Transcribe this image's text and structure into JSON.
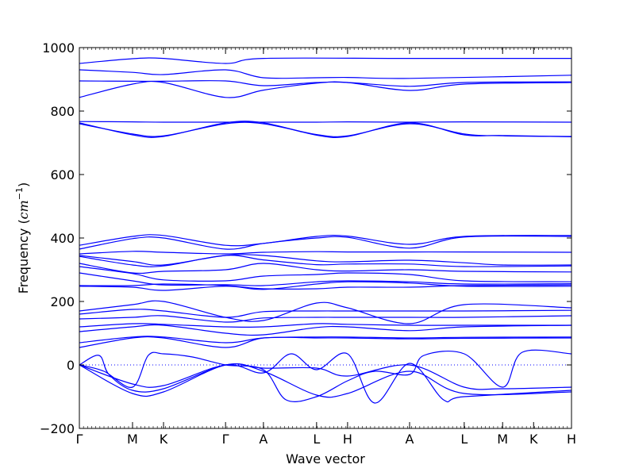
{
  "chart_data": {
    "type": "line",
    "title": "",
    "xlabel": "Wave vector",
    "ylabel": "Frequency (cm⁻¹)",
    "ylabel_base": "Frequency (",
    "ylabel_unit": "cm",
    "ylabel_exp": "−1",
    "ylabel_close": ")",
    "ylim": [
      -200,
      1000
    ],
    "yticks": [
      -200,
      0,
      200,
      400,
      600,
      800,
      1000
    ],
    "grid": false,
    "legend": "none",
    "line_color": "#0000ff",
    "zero_line_color": "#0000ff",
    "high_symmetry_points": [
      {
        "label": "Γ",
        "x": 0.0
      },
      {
        "label": "M",
        "x": 0.108
      },
      {
        "label": "K",
        "x": 0.171
      },
      {
        "label": "Γ",
        "x": 0.297
      },
      {
        "label": "A",
        "x": 0.374
      },
      {
        "label": "L",
        "x": 0.482
      },
      {
        "label": "H",
        "x": 0.545
      },
      {
        "label": "A",
        "x": 0.671
      },
      {
        "label": "L",
        "x": 0.782
      },
      {
        "label": "M",
        "x": 0.86
      },
      {
        "label": "K",
        "x": 0.923
      },
      {
        "label": "H",
        "x": 1.0
      }
    ],
    "series": [
      {
        "values": [
          [
            0.0,
            950
          ],
          [
            0.108,
            965
          ],
          [
            0.171,
            966
          ],
          [
            0.297,
            950
          ],
          [
            0.374,
            966
          ],
          [
            0.671,
            966
          ],
          [
            1.0,
            966
          ]
        ]
      },
      {
        "values": [
          [
            0.0,
            930
          ],
          [
            0.108,
            922
          ],
          [
            0.171,
            915
          ],
          [
            0.297,
            930
          ],
          [
            0.374,
            905
          ],
          [
            0.482,
            905
          ],
          [
            0.545,
            906
          ],
          [
            0.671,
            903
          ],
          [
            1.0,
            913
          ]
        ]
      },
      {
        "values": [
          [
            0.0,
            895
          ],
          [
            0.108,
            894
          ],
          [
            0.171,
            894
          ],
          [
            0.297,
            895
          ],
          [
            0.374,
            880
          ],
          [
            0.482,
            890
          ],
          [
            0.545,
            890
          ],
          [
            0.671,
            878
          ],
          [
            0.782,
            890
          ],
          [
            1.0,
            892
          ]
        ]
      },
      {
        "values": [
          [
            0.0,
            843
          ],
          [
            0.108,
            885
          ],
          [
            0.171,
            890
          ],
          [
            0.297,
            843
          ],
          [
            0.374,
            866
          ],
          [
            0.482,
            888
          ],
          [
            0.545,
            890
          ],
          [
            0.671,
            865
          ],
          [
            0.782,
            885
          ],
          [
            1.0,
            890
          ]
        ]
      },
      {
        "values": [
          [
            0.0,
            767
          ],
          [
            0.108,
            766
          ],
          [
            0.171,
            765
          ],
          [
            0.297,
            765
          ],
          [
            0.374,
            765
          ],
          [
            0.482,
            765
          ],
          [
            0.545,
            766
          ],
          [
            0.671,
            765
          ],
          [
            0.782,
            766
          ],
          [
            1.0,
            765
          ]
        ]
      },
      {
        "values": [
          [
            0.0,
            763
          ],
          [
            0.108,
            725
          ],
          [
            0.171,
            720
          ],
          [
            0.297,
            763
          ],
          [
            0.374,
            763
          ],
          [
            0.482,
            724
          ],
          [
            0.545,
            720
          ],
          [
            0.671,
            763
          ],
          [
            0.782,
            725
          ],
          [
            0.86,
            723
          ],
          [
            1.0,
            719
          ]
        ]
      },
      {
        "values": [
          [
            0.0,
            760
          ],
          [
            0.108,
            728
          ],
          [
            0.171,
            722
          ],
          [
            0.297,
            760
          ],
          [
            0.374,
            760
          ],
          [
            0.482,
            726
          ],
          [
            0.545,
            722
          ],
          [
            0.671,
            760
          ],
          [
            0.782,
            728
          ],
          [
            0.86,
            722
          ],
          [
            1.0,
            720
          ]
        ]
      },
      {
        "values": [
          [
            0.0,
            377
          ],
          [
            0.108,
            405
          ],
          [
            0.171,
            408
          ],
          [
            0.297,
            377
          ],
          [
            0.374,
            383
          ],
          [
            0.482,
            405
          ],
          [
            0.545,
            406
          ],
          [
            0.671,
            380
          ],
          [
            0.782,
            405
          ],
          [
            1.0,
            408
          ]
        ]
      },
      {
        "values": [
          [
            0.0,
            365
          ],
          [
            0.108,
            398
          ],
          [
            0.171,
            400
          ],
          [
            0.297,
            365
          ],
          [
            0.374,
            383
          ],
          [
            0.482,
            400
          ],
          [
            0.545,
            402
          ],
          [
            0.671,
            368
          ],
          [
            0.782,
            403
          ],
          [
            1.0,
            405
          ]
        ]
      },
      {
        "values": [
          [
            0.0,
            350
          ],
          [
            0.108,
            358
          ],
          [
            0.171,
            355
          ],
          [
            0.297,
            350
          ],
          [
            0.374,
            355
          ],
          [
            0.482,
            357
          ],
          [
            0.545,
            356
          ],
          [
            0.671,
            356
          ],
          [
            0.782,
            356
          ],
          [
            1.0,
            355
          ]
        ]
      },
      {
        "values": [
          [
            0.0,
            345
          ],
          [
            0.108,
            326
          ],
          [
            0.171,
            315
          ],
          [
            0.297,
            345
          ],
          [
            0.374,
            345
          ],
          [
            0.482,
            328
          ],
          [
            0.545,
            325
          ],
          [
            0.671,
            330
          ],
          [
            0.782,
            322
          ],
          [
            0.86,
            315
          ],
          [
            1.0,
            315
          ]
        ]
      },
      {
        "values": [
          [
            0.0,
            342
          ],
          [
            0.108,
            315
          ],
          [
            0.171,
            312
          ],
          [
            0.297,
            345
          ],
          [
            0.374,
            331
          ],
          [
            0.482,
            316
          ],
          [
            0.545,
            318
          ],
          [
            0.671,
            318
          ],
          [
            0.782,
            310
          ],
          [
            1.0,
            312
          ]
        ]
      },
      {
        "values": [
          [
            0.0,
            320
          ],
          [
            0.108,
            290
          ],
          [
            0.171,
            295
          ],
          [
            0.297,
            300
          ],
          [
            0.374,
            320
          ],
          [
            0.482,
            300
          ],
          [
            0.545,
            296
          ],
          [
            0.671,
            300
          ],
          [
            0.782,
            295
          ],
          [
            1.0,
            293
          ]
        ]
      },
      {
        "values": [
          [
            0.0,
            310
          ],
          [
            0.108,
            288
          ],
          [
            0.171,
            268
          ],
          [
            0.297,
            265
          ],
          [
            0.374,
            280
          ],
          [
            0.482,
            285
          ],
          [
            0.545,
            290
          ],
          [
            0.671,
            285
          ],
          [
            0.782,
            265
          ],
          [
            1.0,
            262
          ]
        ]
      },
      {
        "values": [
          [
            0.0,
            290
          ],
          [
            0.108,
            265
          ],
          [
            0.171,
            252
          ],
          [
            0.297,
            253
          ],
          [
            0.374,
            250
          ],
          [
            0.482,
            262
          ],
          [
            0.545,
            265
          ],
          [
            0.671,
            262
          ],
          [
            0.782,
            255
          ],
          [
            1.0,
            256
          ]
        ]
      },
      {
        "values": [
          [
            0.0,
            250
          ],
          [
            0.108,
            250
          ],
          [
            0.171,
            255
          ],
          [
            0.297,
            250
          ],
          [
            0.374,
            240
          ],
          [
            0.482,
            240
          ],
          [
            0.545,
            245
          ],
          [
            0.671,
            245
          ],
          [
            0.782,
            250
          ],
          [
            1.0,
            252
          ]
        ]
      },
      {
        "values": [
          [
            0.0,
            248
          ],
          [
            0.108,
            245
          ],
          [
            0.171,
            235
          ],
          [
            0.297,
            248
          ],
          [
            0.374,
            238
          ],
          [
            0.482,
            255
          ],
          [
            0.545,
            262
          ],
          [
            0.671,
            258
          ],
          [
            0.782,
            248
          ],
          [
            1.0,
            248
          ]
        ]
      },
      {
        "values": [
          [
            0.0,
            170
          ],
          [
            0.108,
            190
          ],
          [
            0.171,
            200
          ],
          [
            0.297,
            150
          ],
          [
            0.374,
            140
          ],
          [
            0.482,
            195
          ],
          [
            0.545,
            180
          ],
          [
            0.671,
            130
          ],
          [
            0.782,
            190
          ],
          [
            1.0,
            180
          ]
        ]
      },
      {
        "values": [
          [
            0.0,
            160
          ],
          [
            0.108,
            175
          ],
          [
            0.171,
            170
          ],
          [
            0.297,
            150
          ],
          [
            0.374,
            168
          ],
          [
            0.482,
            170
          ],
          [
            0.545,
            170
          ],
          [
            0.671,
            170
          ],
          [
            0.782,
            170
          ],
          [
            1.0,
            172
          ]
        ]
      },
      {
        "values": [
          [
            0.0,
            145
          ],
          [
            0.108,
            150
          ],
          [
            0.171,
            155
          ],
          [
            0.297,
            135
          ],
          [
            0.374,
            148
          ],
          [
            0.482,
            150
          ],
          [
            0.545,
            150
          ],
          [
            0.671,
            150
          ],
          [
            0.782,
            150
          ],
          [
            1.0,
            155
          ]
        ]
      },
      {
        "values": [
          [
            0.0,
            120
          ],
          [
            0.108,
            130
          ],
          [
            0.171,
            128
          ],
          [
            0.297,
            120
          ],
          [
            0.374,
            120
          ],
          [
            0.482,
            130
          ],
          [
            0.545,
            128
          ],
          [
            0.671,
            125
          ],
          [
            0.782,
            125
          ],
          [
            1.0,
            125
          ]
        ]
      },
      {
        "values": [
          [
            0.0,
            105
          ],
          [
            0.108,
            120
          ],
          [
            0.171,
            125
          ],
          [
            0.297,
            100
          ],
          [
            0.374,
            95
          ],
          [
            0.482,
            118
          ],
          [
            0.545,
            120
          ],
          [
            0.671,
            108
          ],
          [
            0.782,
            120
          ],
          [
            1.0,
            125
          ]
        ]
      },
      {
        "values": [
          [
            0.0,
            70
          ],
          [
            0.108,
            88
          ],
          [
            0.171,
            88
          ],
          [
            0.297,
            70
          ],
          [
            0.374,
            85
          ],
          [
            0.482,
            88
          ],
          [
            0.545,
            88
          ],
          [
            0.671,
            85
          ],
          [
            0.782,
            87
          ],
          [
            1.0,
            88
          ]
        ]
      },
      {
        "values": [
          [
            0.0,
            55
          ],
          [
            0.108,
            85
          ],
          [
            0.171,
            85
          ],
          [
            0.297,
            55
          ],
          [
            0.374,
            85
          ],
          [
            0.482,
            85
          ],
          [
            0.545,
            85
          ],
          [
            0.671,
            82
          ],
          [
            0.782,
            84
          ],
          [
            1.0,
            85
          ]
        ]
      },
      {
        "values": [
          [
            0.0,
            0
          ],
          [
            0.04,
            30
          ],
          [
            0.06,
            -30
          ],
          [
            0.108,
            -80
          ],
          [
            0.171,
            -75
          ],
          [
            0.297,
            0
          ],
          [
            0.374,
            -10
          ],
          [
            0.482,
            -10
          ],
          [
            0.545,
            -35
          ],
          [
            0.671,
            0
          ],
          [
            0.782,
            -70
          ],
          [
            0.86,
            -75
          ],
          [
            1.0,
            -70
          ]
        ]
      },
      {
        "values": [
          [
            0.0,
            0
          ],
          [
            0.108,
            -90
          ],
          [
            0.171,
            -85
          ],
          [
            0.297,
            0
          ],
          [
            0.374,
            -20
          ],
          [
            0.482,
            -95
          ],
          [
            0.545,
            -90
          ],
          [
            0.671,
            -20
          ],
          [
            0.782,
            -90
          ],
          [
            1.0,
            -85
          ]
        ]
      },
      {
        "values": [
          [
            0.0,
            0
          ],
          [
            0.05,
            -20
          ],
          [
            0.108,
            -70
          ],
          [
            0.14,
            30
          ],
          [
            0.171,
            35
          ],
          [
            0.23,
            25
          ],
          [
            0.297,
            0
          ],
          [
            0.374,
            -15
          ],
          [
            0.42,
            -110
          ],
          [
            0.482,
            -100
          ],
          [
            0.545,
            -50
          ],
          [
            0.6,
            -20
          ],
          [
            0.671,
            -30
          ],
          [
            0.7,
            30
          ],
          [
            0.782,
            35
          ],
          [
            0.86,
            -70
          ],
          [
            0.9,
            40
          ],
          [
            1.0,
            35
          ]
        ]
      },
      {
        "values": [
          [
            0.0,
            0
          ],
          [
            0.108,
            -60
          ],
          [
            0.171,
            -65
          ],
          [
            0.297,
            0
          ],
          [
            0.374,
            -25
          ],
          [
            0.43,
            35
          ],
          [
            0.482,
            -15
          ],
          [
            0.545,
            35
          ],
          [
            0.6,
            -120
          ],
          [
            0.671,
            5
          ],
          [
            0.74,
            -110
          ],
          [
            0.782,
            -100
          ],
          [
            1.0,
            -80
          ]
        ]
      }
    ]
  }
}
